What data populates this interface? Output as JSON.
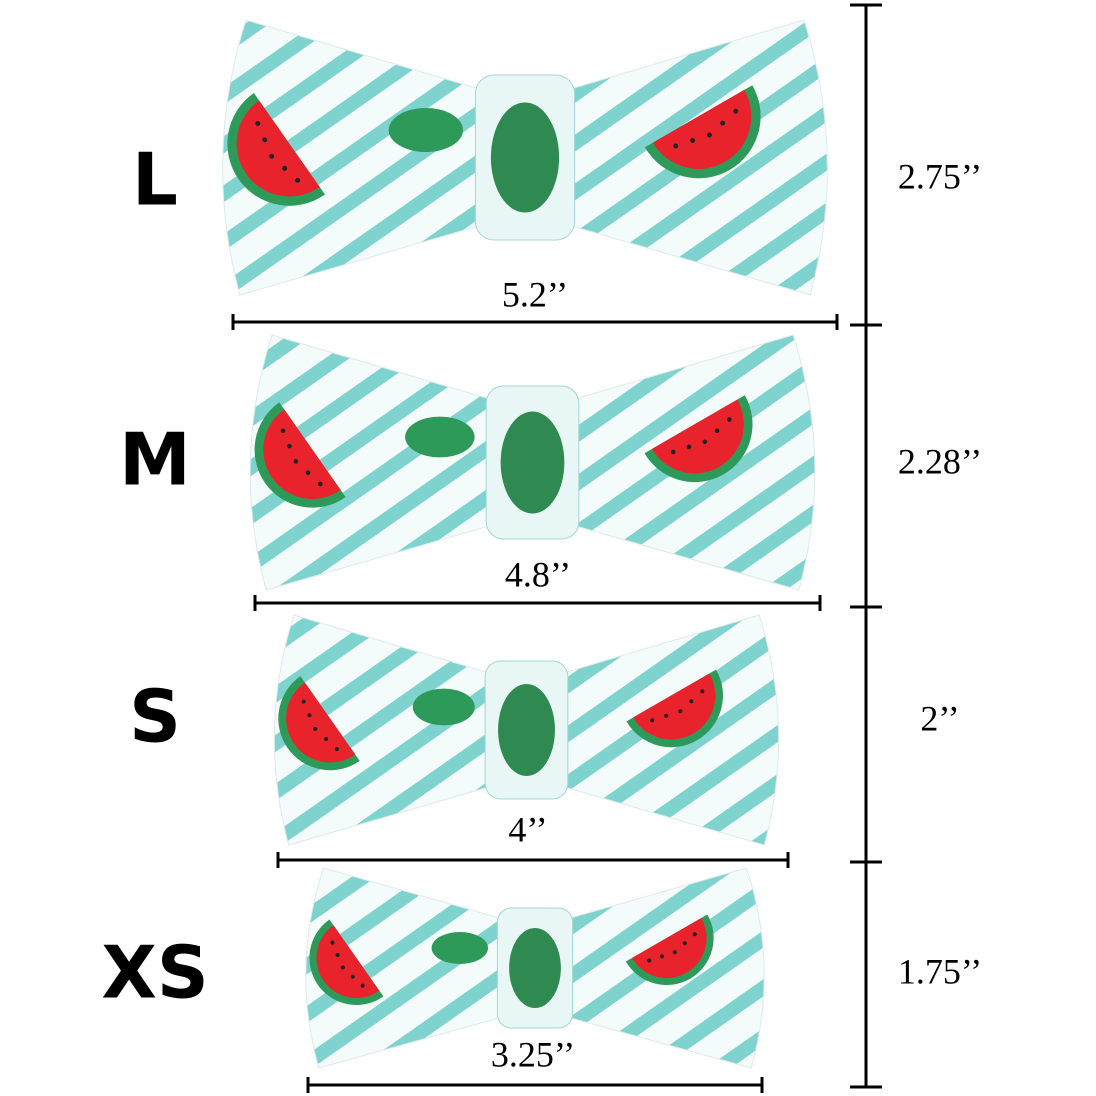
{
  "sizes": [
    {
      "label": "L",
      "width": "5.2’’",
      "height": "2.75’’"
    },
    {
      "label": "M",
      "width": "4.8’’",
      "height": "2.28’’"
    },
    {
      "label": "S",
      "width": "4’’",
      "height": "2’’"
    },
    {
      "label": "XS",
      "width": "3.25’’",
      "height": "1.75’’"
    }
  ]
}
